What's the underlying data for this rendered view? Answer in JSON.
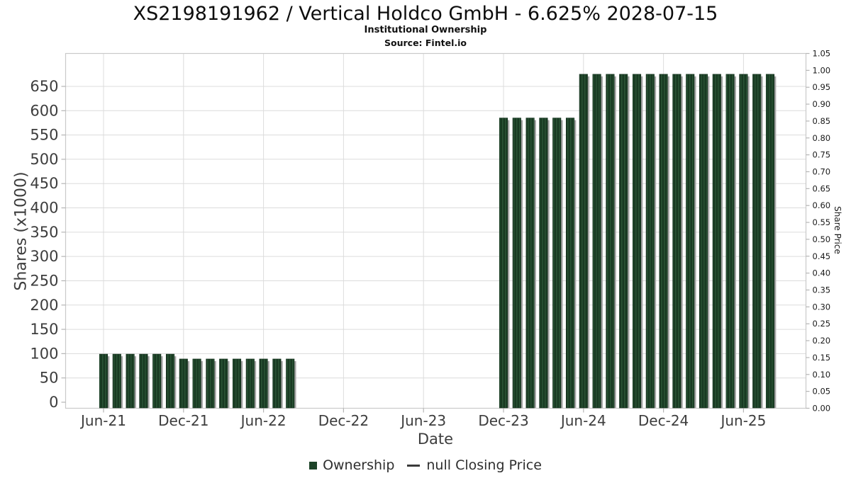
{
  "header": {
    "title": "XS2198191962 / Vertical Holdco GmbH - 6.625% 2028-07-15",
    "subtitle": "Institutional Ownership",
    "source": "Source: Fintel.io"
  },
  "chart_data": {
    "type": "bar",
    "title": "XS2198191962 / Vertical Holdco GmbH - 6.625% 2028-07-15",
    "subtitle": "Institutional Ownership",
    "source": "Source: Fintel.io",
    "xlabel": "Date",
    "ylabel_left": "Shares (x1000)",
    "ylabel_right": "Share Price",
    "ylim_left": [
      0,
      700
    ],
    "ylim_right": [
      0,
      1.05
    ],
    "grid": true,
    "legend_position": "bottom-center",
    "x_ticks": [
      {
        "label": "Jun-21",
        "month": "2021-06"
      },
      {
        "label": "Dec-21",
        "month": "2021-12"
      },
      {
        "label": "Jun-22",
        "month": "2022-06"
      },
      {
        "label": "Dec-22",
        "month": "2022-12"
      },
      {
        "label": "Jun-23",
        "month": "2023-06"
      },
      {
        "label": "Dec-23",
        "month": "2023-12"
      },
      {
        "label": "Jun-24",
        "month": "2024-06"
      },
      {
        "label": "Dec-24",
        "month": "2024-12"
      },
      {
        "label": "Jun-25",
        "month": "2025-06"
      }
    ],
    "y_left_ticks": [
      0,
      50,
      100,
      150,
      200,
      250,
      300,
      350,
      400,
      450,
      500,
      550,
      600,
      650
    ],
    "y_right_ticks": [
      "0.00",
      "0.05",
      "0.10",
      "0.15",
      "0.20",
      "0.25",
      "0.30",
      "0.35",
      "0.40",
      "0.45",
      "0.50",
      "0.55",
      "0.60",
      "0.65",
      "0.70",
      "0.75",
      "0.80",
      "0.85",
      "0.90",
      "0.95",
      "1.00",
      "1.05"
    ],
    "series": [
      {
        "name": "Ownership",
        "type": "bar",
        "axis": "left",
        "points": [
          [
            "2021-06",
            99
          ],
          [
            "2021-07",
            99
          ],
          [
            "2021-08",
            99
          ],
          [
            "2021-09",
            99
          ],
          [
            "2021-10",
            99
          ],
          [
            "2021-11",
            99
          ],
          [
            "2021-12",
            89
          ],
          [
            "2022-01",
            89
          ],
          [
            "2022-02",
            89
          ],
          [
            "2022-03",
            89
          ],
          [
            "2022-04",
            89
          ],
          [
            "2022-05",
            89
          ],
          [
            "2022-06",
            89
          ],
          [
            "2022-07",
            89
          ],
          [
            "2022-08",
            89
          ],
          [
            "2023-12",
            585
          ],
          [
            "2024-01",
            585
          ],
          [
            "2024-02",
            585
          ],
          [
            "2024-03",
            585
          ],
          [
            "2024-04",
            585
          ],
          [
            "2024-05",
            585
          ],
          [
            "2024-06",
            675
          ],
          [
            "2024-07",
            675
          ],
          [
            "2024-08",
            675
          ],
          [
            "2024-09",
            675
          ],
          [
            "2024-10",
            675
          ],
          [
            "2024-11",
            675
          ],
          [
            "2024-12",
            675
          ],
          [
            "2025-01",
            675
          ],
          [
            "2025-02",
            675
          ],
          [
            "2025-03",
            675
          ],
          [
            "2025-04",
            675
          ],
          [
            "2025-05",
            675
          ],
          [
            "2025-06",
            675
          ],
          [
            "2025-07",
            675
          ],
          [
            "2025-08",
            675
          ]
        ]
      },
      {
        "name": "null Closing Price",
        "type": "line",
        "axis": "right",
        "points": []
      }
    ],
    "legend": [
      {
        "label": "Ownership",
        "marker": "square",
        "color": "#1d4328"
      },
      {
        "label": "null Closing Price",
        "marker": "line",
        "color": "#3a3a3a"
      }
    ],
    "colors": {
      "bar": "#1d4328",
      "bar_light": "#2e5839",
      "bar_dark": "#15321d",
      "bar_shadow": "#a5a5a5",
      "grid": "#dcdcdc",
      "box_border": "#c9c9c9",
      "tick_mark": "#b5b5b5",
      "tick_text": "#3d3d3d",
      "right_tick_text": "#1a1a1a"
    }
  }
}
